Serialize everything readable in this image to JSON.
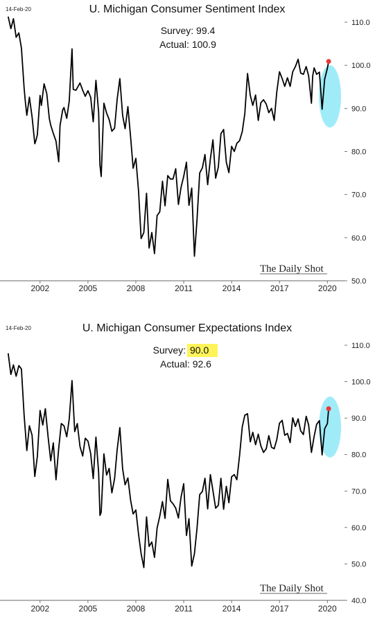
{
  "chart_data": [
    {
      "type": "line",
      "title": "U. Michigan Consumer Sentiment Index",
      "date_stamp": "14-Feb-20",
      "annotation": {
        "survey_label": "Survey: 99.4",
        "actual_label": "Actual:  100.9",
        "survey_value": 99.4,
        "actual_value": 100.9
      },
      "ylim": [
        50,
        110
      ],
      "yticks": [
        50,
        60,
        70,
        80,
        90,
        100,
        110
      ],
      "ytick_labels": [
        "50.0",
        "60.0",
        "70.0",
        "80.0",
        "90.0",
        "100.0",
        "110.0"
      ],
      "xlim": [
        1999.75,
        2020.9
      ],
      "xticks": [
        2002,
        2005,
        2008,
        2011,
        2014,
        2017,
        2020
      ],
      "xtick_labels": [
        "2002",
        "2005",
        "2008",
        "2011",
        "2014",
        "2017",
        "2020"
      ],
      "line_color": "#000000",
      "highlight_color": "#7fe6f5",
      "marker_color": "#e63b3b",
      "watermark": "The Daily Shot",
      "grid": false,
      "series": [
        {
          "x": [
            2000.0,
            2000.17,
            2000.33,
            2000.5,
            2000.67,
            2000.83,
            2001.0,
            2001.08,
            2001.17,
            2001.33,
            2001.5,
            2001.67,
            2001.75,
            2001.83,
            2002.0,
            2002.08,
            2002.25,
            2002.42,
            2002.58,
            2002.67,
            2002.83,
            2003.0,
            2003.17,
            2003.25,
            2003.42,
            2003.5,
            2003.67,
            2003.83,
            2004.0,
            2004.08,
            2004.25,
            2004.5,
            2004.67,
            2004.83,
            2005.0,
            2005.17,
            2005.33,
            2005.5,
            2005.67,
            2005.75,
            2005.83,
            2006.0,
            2006.17,
            2006.33,
            2006.5,
            2006.67,
            2006.83,
            2007.0,
            2007.17,
            2007.33,
            2007.5,
            2007.67,
            2007.83,
            2008.0,
            2008.17,
            2008.33,
            2008.5,
            2008.67,
            2008.83,
            2009.0,
            2009.17,
            2009.33,
            2009.5,
            2009.67,
            2009.83,
            2010.0,
            2010.17,
            2010.33,
            2010.5,
            2010.67,
            2010.83,
            2011.0,
            2011.17,
            2011.33,
            2011.5,
            2011.67,
            2011.83,
            2012.0,
            2012.17,
            2012.33,
            2012.5,
            2012.67,
            2012.83,
            2013.0,
            2013.17,
            2013.33,
            2013.5,
            2013.67,
            2013.83,
            2014.0,
            2014.17,
            2014.33,
            2014.5,
            2014.67,
            2014.83,
            2015.0,
            2015.17,
            2015.33,
            2015.5,
            2015.67,
            2015.83,
            2016.0,
            2016.17,
            2016.33,
            2016.5,
            2016.67,
            2016.83,
            2017.0,
            2017.17,
            2017.33,
            2017.5,
            2017.67,
            2017.83,
            2018.0,
            2018.17,
            2018.33,
            2018.5,
            2018.67,
            2018.83,
            2019.0,
            2019.08,
            2019.17,
            2019.33,
            2019.5,
            2019.67,
            2019.83,
            2020.0,
            2020.08
          ],
          "values": [
            111.3,
            108.5,
            110.8,
            106.5,
            107.5,
            104,
            94.7,
            91.5,
            88.4,
            92.6,
            88,
            81.8,
            82.7,
            83.9,
            93,
            90.7,
            95.7,
            93.4,
            87.6,
            86.1,
            84.2,
            82.4,
            77.6,
            86,
            89.7,
            90.2,
            87.7,
            91.7,
            103.8,
            94.4,
            94.2,
            95.9,
            94.2,
            92.8,
            94.1,
            92.6,
            86.9,
            96.5,
            89.1,
            76.9,
            74.2,
            91.2,
            88.9,
            87.4,
            84.7,
            85.4,
            92.1,
            96.9,
            88.4,
            85.3,
            90.4,
            83.4,
            76.1,
            78.4,
            70.8,
            59.8,
            61.2,
            70.3,
            57.6,
            61.2,
            56.3,
            65.1,
            66,
            73.1,
            67.4,
            74.4,
            73.6,
            73.6,
            76,
            67.7,
            71.6,
            74.2,
            77.5,
            67.5,
            71.5,
            55.7,
            64.1,
            75,
            76.2,
            79.3,
            72.3,
            78.3,
            82.7,
            73.8,
            76.4,
            84.1,
            85.1,
            77.5,
            75.1,
            81.2,
            80,
            81.9,
            82.5,
            84.6,
            88.8,
            98.1,
            93,
            90.7,
            93.1,
            87.2,
            91.3,
            92,
            91,
            89,
            90,
            87.2,
            93.8,
            98.5,
            96.9,
            95.1,
            97.1,
            95.1,
            98.5,
            99.7,
            101.4,
            98.2,
            97.9,
            99.7,
            97.5,
            91.2,
            97.5,
            99.4,
            97.9,
            98.4,
            89.8,
            96.8,
            99.3,
            100.9
          ]
        }
      ]
    },
    {
      "type": "line",
      "title": "U. Michigan Consumer Expectations Index",
      "date_stamp": "14-Feb-20",
      "annotation": {
        "survey_label": "Survey:",
        "survey_number": "90.0",
        "actual_label": "Actual:  92.6",
        "survey_value": 90.0,
        "actual_value": 92.6
      },
      "ylim": [
        40,
        110
      ],
      "yticks": [
        40,
        50,
        60,
        70,
        80,
        90,
        100,
        110
      ],
      "ytick_labels": [
        "40.0",
        "50.0",
        "60.0",
        "70.0",
        "80.0",
        "90.0",
        "100.0",
        "110.0"
      ],
      "xlim": [
        1999.75,
        2020.9
      ],
      "xticks": [
        2002,
        2005,
        2008,
        2011,
        2014,
        2017,
        2020
      ],
      "xtick_labels": [
        "2002",
        "2005",
        "2008",
        "2011",
        "2014",
        "2017",
        "2020"
      ],
      "line_color": "#000000",
      "highlight_color": "#7fe6f5",
      "survey_highlight_color": "#fff35a",
      "marker_color": "#e63b3b",
      "watermark": "The Daily Shot",
      "grid": false,
      "series": [
        {
          "x": [
            2000.0,
            2000.17,
            2000.33,
            2000.5,
            2000.67,
            2000.83,
            2001.0,
            2001.17,
            2001.33,
            2001.5,
            2001.67,
            2001.83,
            2002.0,
            2002.17,
            2002.33,
            2002.5,
            2002.67,
            2002.83,
            2003.0,
            2003.17,
            2003.33,
            2003.5,
            2003.67,
            2003.83,
            2004.0,
            2004.17,
            2004.33,
            2004.5,
            2004.67,
            2004.83,
            2005.0,
            2005.17,
            2005.33,
            2005.5,
            2005.67,
            2005.75,
            2005.83,
            2006.0,
            2006.17,
            2006.33,
            2006.5,
            2006.67,
            2006.83,
            2007.0,
            2007.17,
            2007.33,
            2007.5,
            2007.67,
            2007.83,
            2008.0,
            2008.17,
            2008.33,
            2008.5,
            2008.67,
            2008.83,
            2009.0,
            2009.17,
            2009.33,
            2009.5,
            2009.67,
            2009.83,
            2010.0,
            2010.17,
            2010.33,
            2010.5,
            2010.67,
            2010.83,
            2011.0,
            2011.17,
            2011.33,
            2011.5,
            2011.67,
            2011.83,
            2012.0,
            2012.17,
            2012.33,
            2012.5,
            2012.67,
            2012.83,
            2013.0,
            2013.17,
            2013.33,
            2013.5,
            2013.67,
            2013.83,
            2014.0,
            2014.17,
            2014.33,
            2014.5,
            2014.67,
            2014.83,
            2015.0,
            2015.17,
            2015.33,
            2015.5,
            2015.67,
            2015.83,
            2016.0,
            2016.17,
            2016.33,
            2016.5,
            2016.67,
            2016.83,
            2017.0,
            2017.17,
            2017.33,
            2017.5,
            2017.67,
            2017.83,
            2018.0,
            2018.17,
            2018.33,
            2018.5,
            2018.67,
            2018.83,
            2019.0,
            2019.17,
            2019.33,
            2019.5,
            2019.67,
            2019.83,
            2020.0,
            2020.08
          ],
          "values": [
            107.8,
            102,
            104.6,
            101.5,
            104.4,
            103.5,
            90.8,
            81.1,
            87.9,
            85.3,
            74,
            79.5,
            92.1,
            88.1,
            92.6,
            85,
            78.3,
            83.2,
            73.1,
            81.7,
            88.5,
            87.9,
            84.9,
            89.8,
            100.3,
            86.3,
            88.5,
            82.2,
            79.6,
            84.5,
            83.7,
            80.3,
            73.4,
            84.8,
            75.1,
            63.3,
            64.2,
            80.2,
            74.4,
            76.2,
            69.5,
            73.4,
            81.3,
            87.4,
            76.1,
            71.7,
            73.6,
            67.5,
            63.7,
            64.8,
            58.1,
            52.8,
            49,
            62.9,
            54.8,
            56,
            51.8,
            59.8,
            63.1,
            67.1,
            62.5,
            73.2,
            67.3,
            66.5,
            65.3,
            62.6,
            68.2,
            72,
            57.8,
            62.4,
            49.4,
            52.8,
            59.7,
            69,
            69.9,
            73.5,
            65.1,
            74.5,
            70.1,
            65.3,
            66.1,
            73.5,
            65,
            71.3,
            66.8,
            73.9,
            74.5,
            73.1,
            79.7,
            87.6,
            90.8,
            91.2,
            83.5,
            86.1,
            82.7,
            85.6,
            82.4,
            80.6,
            81.6,
            85.2,
            82,
            81.6,
            84.1,
            88.6,
            89.4,
            85.3,
            85.8,
            83.3,
            90.1,
            87.7,
            89.8,
            86.5,
            85.5,
            90.5,
            88.1,
            80.6,
            85,
            88.3,
            89.3,
            79.9,
            87.1,
            88.5,
            92.6
          ]
        }
      ]
    }
  ]
}
